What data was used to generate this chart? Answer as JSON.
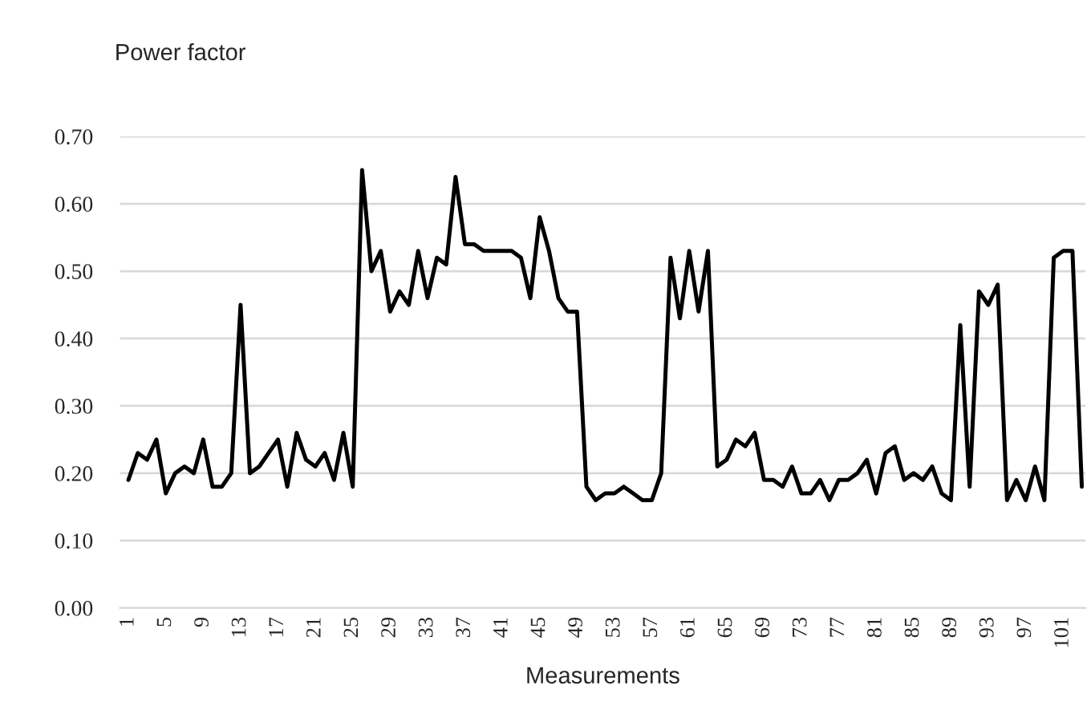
{
  "chart_data": {
    "type": "line",
    "xlabel": "Measurements",
    "ylabel": "Power factor",
    "categories": [
      "1",
      null,
      null,
      null,
      "5",
      null,
      null,
      null,
      "9",
      null,
      null,
      null,
      "13",
      null,
      null,
      null,
      "17",
      null,
      null,
      null,
      "21",
      null,
      null,
      null,
      "25",
      null,
      null,
      null,
      "29",
      null,
      null,
      null,
      "33",
      null,
      null,
      null,
      "37",
      null,
      null,
      null,
      "41",
      null,
      null,
      null,
      "45",
      null,
      null,
      null,
      "49",
      null,
      null,
      null,
      "53",
      null,
      null,
      null,
      "57",
      null,
      null,
      null,
      "61",
      null,
      null,
      null,
      "65",
      null,
      null,
      null,
      "69",
      null,
      null,
      null,
      "73",
      null,
      null,
      null,
      "77",
      null,
      null,
      null,
      "81",
      null,
      null,
      null,
      "85",
      null,
      null,
      null,
      "89",
      null,
      null,
      null,
      "93",
      null,
      null,
      null,
      "97",
      null,
      null,
      null,
      "101",
      null,
      null
    ],
    "series": [
      {
        "color": "#000000",
        "values": [
          0.19,
          0.23,
          0.22,
          0.25,
          0.17,
          0.2,
          0.21,
          0.2,
          0.25,
          0.18,
          0.18,
          0.2,
          0.45,
          0.2,
          0.21,
          0.23,
          0.25,
          0.18,
          0.26,
          0.22,
          0.21,
          0.23,
          0.19,
          0.26,
          0.18,
          0.65,
          0.5,
          0.53,
          0.44,
          0.47,
          0.45,
          0.53,
          0.46,
          0.52,
          0.51,
          0.64,
          0.54,
          0.54,
          0.53,
          0.53,
          0.53,
          0.53,
          0.52,
          0.46,
          0.58,
          0.53,
          0.46,
          0.44,
          0.44,
          0.18,
          0.16,
          0.17,
          0.17,
          0.18,
          0.17,
          0.16,
          0.16,
          0.2,
          0.52,
          0.43,
          0.53,
          0.44,
          0.53,
          0.21,
          0.22,
          0.25,
          0.24,
          0.26,
          0.19,
          0.19,
          0.18,
          0.21,
          0.17,
          0.17,
          0.19,
          0.16,
          0.19,
          0.19,
          0.2,
          0.22,
          0.17,
          0.23,
          0.24,
          0.19,
          0.2,
          0.19,
          0.21,
          0.17,
          0.16,
          0.42,
          0.18,
          0.47,
          0.45,
          0.48,
          0.16,
          0.19,
          0.16,
          0.21,
          0.16,
          0.52,
          0.53,
          0.53,
          0.18
        ]
      }
    ],
    "ylim": [
      0,
      0.7
    ],
    "yticks": [
      {
        "value": 0,
        "label": "0.00"
      },
      {
        "value": 0.1,
        "label": "0.10"
      },
      {
        "value": 0.2,
        "label": "0.20"
      },
      {
        "value": 0.3,
        "label": "0.30"
      },
      {
        "value": 0.4,
        "label": "0.40"
      },
      {
        "value": 0.5,
        "label": "0.50"
      },
      {
        "value": 0.6,
        "label": "0.60"
      },
      {
        "value": 0.7,
        "label": "0.70"
      }
    ],
    "grid": "y",
    "marker": "none",
    "line_style": "solid"
  }
}
